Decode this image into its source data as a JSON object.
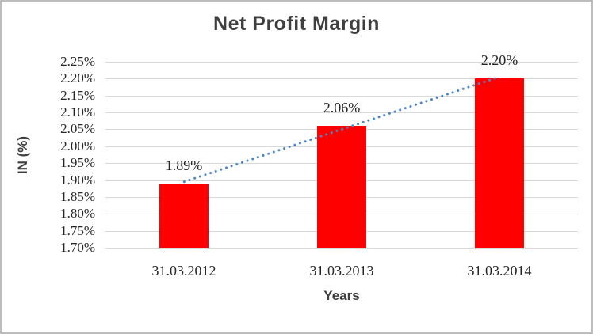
{
  "chart_data": {
    "type": "bar",
    "title": "Net Profit Margin",
    "xlabel": "Years",
    "ylabel": "IN (%)",
    "categories": [
      "31.03.2012",
      "31.03.2013",
      "31.03.2014"
    ],
    "values": [
      1.89,
      2.06,
      2.2
    ],
    "value_labels": [
      "1.89%",
      "2.06%",
      "2.20%"
    ],
    "ylim": [
      1.7,
      2.25
    ],
    "ytick_step": 0.05,
    "ytick_labels": [
      "2.25%",
      "2.20%",
      "2.15%",
      "2.10%",
      "2.05%",
      "2.00%",
      "1.95%",
      "1.90%",
      "1.85%",
      "1.80%",
      "1.75%",
      "1.70%"
    ],
    "grid": "horizontal",
    "legend": "none",
    "trendline": {
      "type": "linear",
      "style": "dotted",
      "start_value": 1.895,
      "end_value": 2.205
    },
    "colors": {
      "bar": "#ff0000",
      "trendline": "#4a86c8",
      "gridline": "#d9d9d9",
      "title_text": "#3f3f3f",
      "label_text": "#262626",
      "border": "#bdbdbd"
    }
  }
}
